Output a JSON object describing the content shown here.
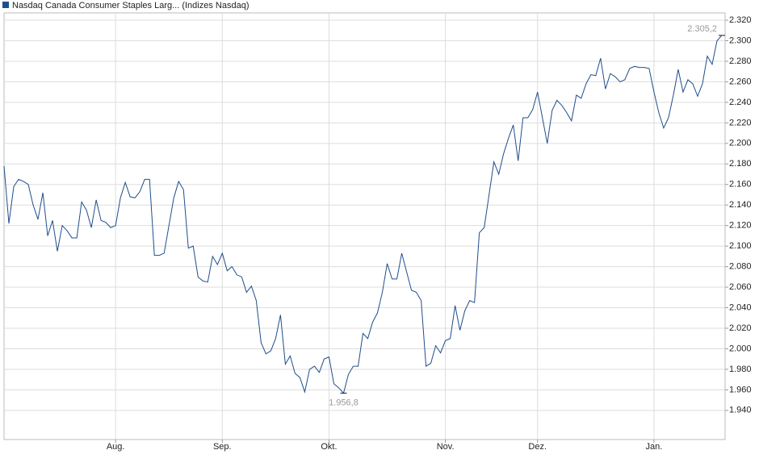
{
  "chart_data": {
    "type": "line",
    "series": [
      {
        "name": "Nasdaq Canada Consumer Staples Larg... (Indizes Nasdaq)",
        "color": "#1f4e8c",
        "values": [
          2178,
          2122,
          2158,
          2165,
          2163,
          2160,
          2140,
          2126,
          2152,
          2110,
          2125,
          2095,
          2120,
          2115,
          2108,
          2108,
          2143,
          2135,
          2118,
          2145,
          2125,
          2123,
          2118,
          2120,
          2147,
          2162,
          2148,
          2147,
          2153,
          2165,
          2165,
          2091,
          2091,
          2093,
          2120,
          2147,
          2163,
          2155,
          2098,
          2100,
          2070,
          2066,
          2065,
          2090,
          2082,
          2093,
          2076,
          2080,
          2072,
          2070,
          2055,
          2061,
          2047,
          2006,
          1995,
          1998,
          2010,
          2033,
          1985,
          1993,
          1976,
          1972,
          1958,
          1980,
          1983,
          1977,
          1990,
          1992,
          1966,
          1962,
          1956.8,
          1975,
          1983,
          1983,
          2015,
          2010,
          2026,
          2035,
          2055,
          2083,
          2068,
          2068,
          2093,
          2075,
          2057,
          2055,
          2047,
          1983,
          1986,
          2003,
          1996,
          2008,
          2010,
          2042,
          2018,
          2037,
          2047,
          2045,
          2113,
          2118,
          2150,
          2182,
          2170,
          2190,
          2205,
          2218,
          2183,
          2225,
          2225,
          2233,
          2250,
          2225,
          2200,
          2232,
          2242,
          2237,
          2230,
          2222,
          2247,
          2244,
          2258,
          2267,
          2266,
          2283,
          2253,
          2268,
          2265,
          2260,
          2262,
          2273,
          2275,
          2274,
          2274,
          2273,
          2250,
          2230,
          2215,
          2225,
          2247,
          2272,
          2250,
          2262,
          2258,
          2246,
          2258,
          2285,
          2277,
          2300,
          2305.2
        ]
      }
    ],
    "categories": [
      null,
      null,
      null,
      null,
      null,
      null,
      null,
      null,
      null,
      null,
      null,
      null,
      null,
      null,
      null,
      null,
      null,
      null,
      null,
      null,
      null,
      null,
      null,
      "Aug.",
      null,
      null,
      null,
      null,
      null,
      null,
      null,
      null,
      null,
      null,
      null,
      null,
      null,
      null,
      null,
      null,
      null,
      null,
      null,
      null,
      null,
      "Sep.",
      null,
      null,
      null,
      null,
      null,
      null,
      null,
      null,
      null,
      null,
      null,
      null,
      null,
      null,
      null,
      null,
      null,
      null,
      null,
      null,
      null,
      "Okt.",
      null,
      null,
      null,
      null,
      null,
      null,
      null,
      null,
      null,
      null,
      null,
      null,
      null,
      null,
      null,
      null,
      null,
      null,
      null,
      null,
      null,
      null,
      null,
      "Nov.",
      null,
      null,
      null,
      null,
      null,
      null,
      null,
      null,
      null,
      null,
      null,
      null,
      null,
      null,
      null,
      null,
      null,
      null,
      "Dez.",
      null,
      null,
      null,
      null,
      null,
      null,
      null,
      null,
      null,
      null,
      null,
      null,
      null,
      null,
      null,
      null,
      null,
      null,
      null,
      null,
      null,
      null,
      null,
      "Jan.",
      null,
      null,
      null,
      null,
      null,
      null,
      null,
      null,
      null,
      null,
      null,
      null,
      null,
      null
    ],
    "ylim": [
      1911.6,
      2327.1
    ],
    "yticks": [
      {
        "value": 1940,
        "label": "1.940"
      },
      {
        "value": 1960,
        "label": "1.960"
      },
      {
        "value": 1980,
        "label": "1.980"
      },
      {
        "value": 2000,
        "label": "2.000"
      },
      {
        "value": 2020,
        "label": "2.020"
      },
      {
        "value": 2040,
        "label": "2.040"
      },
      {
        "value": 2060,
        "label": "2.060"
      },
      {
        "value": 2080,
        "label": "2.080"
      },
      {
        "value": 2100,
        "label": "2.100"
      },
      {
        "value": 2120,
        "label": "2.120"
      },
      {
        "value": 2140,
        "label": "2.140"
      },
      {
        "value": 2160,
        "label": "2.160"
      },
      {
        "value": 2180,
        "label": "2.180"
      },
      {
        "value": 2200,
        "label": "2.200"
      },
      {
        "value": 2220,
        "label": "2.220"
      },
      {
        "value": 2240,
        "label": "2.240"
      },
      {
        "value": 2260,
        "label": "2.260"
      },
      {
        "value": 2280,
        "label": "2.280"
      },
      {
        "value": 2300,
        "label": "2.300"
      },
      {
        "value": 2320,
        "label": "2.320"
      }
    ],
    "grid": true,
    "annotations": [
      {
        "label": "2.305,2",
        "value": 2305.2
      },
      {
        "label": "1.956,8",
        "value": 1956.8
      }
    ]
  }
}
